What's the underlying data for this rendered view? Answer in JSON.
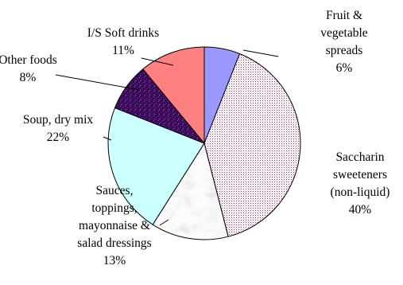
{
  "chart_data": {
    "type": "pie",
    "title": "",
    "start_angle_deg": 0,
    "direction": "clockwise",
    "slices": [
      {
        "label_lines": [
          "Fruit &",
          "vegetable",
          "spreads"
        ],
        "percent_label": "6%",
        "value": 6,
        "color": "#9999ff",
        "pattern": "solid"
      },
      {
        "label_lines": [
          "Saccharin",
          "sweeteners",
          "(non-liquid)"
        ],
        "percent_label": "40%",
        "value": 40,
        "color": "#993366",
        "pattern": "dots"
      },
      {
        "label_lines": [
          "Sauces,",
          "toppings,",
          "mayonnaise &",
          "salad dressings"
        ],
        "percent_label": "13%",
        "value": 13,
        "color": "#c0c0c0",
        "pattern": "marble"
      },
      {
        "label_lines": [
          "Soup, dry mix"
        ],
        "percent_label": "22%",
        "value": 22,
        "color": "#ccffff",
        "pattern": "solid"
      },
      {
        "label_lines": [
          "Other foods"
        ],
        "percent_label": "8%",
        "value": 8,
        "color": "#3c0a5a",
        "pattern": "sparkle"
      },
      {
        "label_lines": [
          "I/S Soft drinks"
        ],
        "percent_label": "11%",
        "value": 11,
        "color": "#ff8080",
        "pattern": "solid"
      }
    ]
  }
}
